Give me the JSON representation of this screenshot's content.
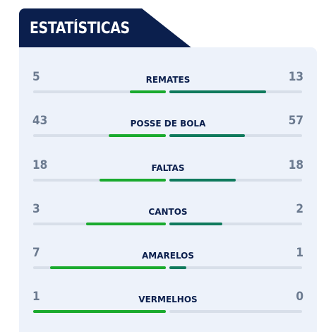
{
  "header": {
    "title": "ESTATÍSTICAS"
  },
  "colors": {
    "header_bg": "#0b1f4d",
    "panel_bg": "#edf2fa",
    "home_bar": "#1aaa2e",
    "away_bar": "#0f7a5c",
    "track": "#d8dfe9",
    "value_text": "#6b7a8f",
    "label_text": "#0b1f4d"
  },
  "stats": [
    {
      "label": "REMATES",
      "home": "5",
      "away": "13",
      "home_frac": 0.27,
      "away_frac": 0.73
    },
    {
      "label": "POSSE DE BOLA",
      "home": "43",
      "away": "57",
      "home_frac": 0.43,
      "away_frac": 0.57
    },
    {
      "label": "FALTAS",
      "home": "18",
      "away": "18",
      "home_frac": 0.5,
      "away_frac": 0.5
    },
    {
      "label": "CANTOS",
      "home": "3",
      "away": "2",
      "home_frac": 0.6,
      "away_frac": 0.4
    },
    {
      "label": "AMARELOS",
      "home": "7",
      "away": "1",
      "home_frac": 0.875,
      "away_frac": 0.125
    },
    {
      "label": "VERMELHOS",
      "home": "1",
      "away": "0",
      "home_frac": 1.0,
      "away_frac": 0.0
    }
  ]
}
